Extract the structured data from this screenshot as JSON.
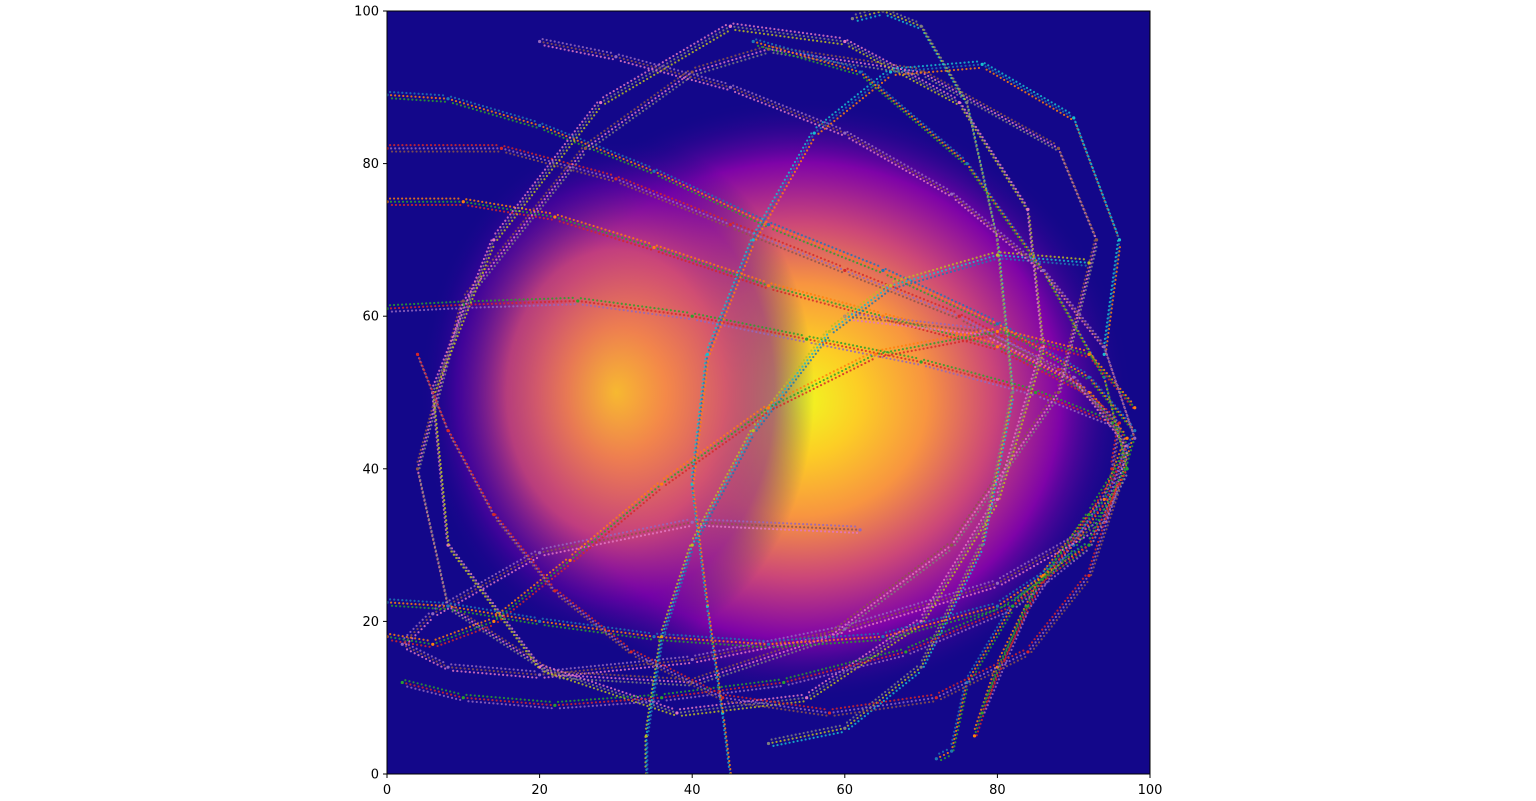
{
  "chart_data": {
    "type": "scatter",
    "title": "",
    "xlabel": "",
    "ylabel": "",
    "xlim": [
      0,
      100
    ],
    "ylim": [
      0,
      100
    ],
    "grid": false,
    "legend": "none",
    "x_ticks": [
      0,
      20,
      40,
      60,
      80,
      100
    ],
    "y_ticks": [
      0,
      20,
      40,
      60,
      80,
      100
    ],
    "background": {
      "type": "heatmap",
      "colormap": "plasma",
      "peaks": [
        {
          "x": 54,
          "y": 49,
          "level": 1.0
        },
        {
          "x": 30,
          "y": 50,
          "level": 0.85
        }
      ]
    },
    "series_colors": [
      "#1f77b4",
      "#ff7f0e",
      "#2ca02c",
      "#d62728",
      "#9467bd",
      "#8c564b",
      "#e377c2",
      "#7f7f7f",
      "#bcbd22",
      "#17becf"
    ],
    "series": [
      {
        "values": [
          [
            0,
            89
          ],
          [
            8,
            88.5
          ],
          [
            20,
            85
          ],
          [
            35,
            79
          ],
          [
            50,
            72
          ],
          [
            65,
            66
          ],
          [
            80,
            59
          ],
          [
            92,
            52
          ],
          [
            98,
            45
          ],
          [
            96,
            38
          ],
          [
            90,
            30
          ],
          [
            82,
            22
          ],
          [
            76,
            12
          ],
          [
            74,
            3
          ],
          [
            72,
            2
          ]
        ]
      },
      {
        "values": [
          [
            0,
            75
          ],
          [
            10,
            75
          ],
          [
            22,
            73
          ],
          [
            35,
            69
          ],
          [
            50,
            64
          ],
          [
            65,
            60
          ],
          [
            80,
            56
          ],
          [
            92,
            50
          ],
          [
            97,
            44
          ],
          [
            94,
            36
          ],
          [
            86,
            26
          ],
          [
            80,
            14
          ],
          [
            77,
            5
          ]
        ]
      },
      {
        "values": [
          [
            0,
            61
          ],
          [
            10,
            61.5
          ],
          [
            25,
            62
          ],
          [
            40,
            60
          ],
          [
            55,
            57
          ],
          [
            70,
            54
          ],
          [
            85,
            50
          ],
          [
            95,
            46
          ],
          [
            97,
            42
          ],
          [
            92,
            34
          ],
          [
            84,
            22
          ],
          [
            78,
            8
          ]
        ]
      },
      {
        "values": [
          [
            0,
            82
          ],
          [
            15,
            82
          ],
          [
            30,
            78
          ],
          [
            45,
            72
          ],
          [
            60,
            66
          ],
          [
            75,
            60
          ],
          [
            88,
            53
          ],
          [
            96,
            46
          ],
          [
            95,
            40
          ]
        ]
      },
      {
        "values": [
          [
            62,
            32
          ],
          [
            40,
            33
          ],
          [
            20,
            29
          ],
          [
            6,
            21
          ],
          [
            2,
            17
          ],
          [
            8,
            14
          ],
          [
            20,
            13
          ],
          [
            40,
            15
          ],
          [
            60,
            19
          ],
          [
            80,
            25
          ],
          [
            94,
            33
          ],
          [
            97,
            43
          ],
          [
            90,
            52
          ],
          [
            78,
            58
          ],
          [
            60,
            60
          ]
        ]
      },
      {
        "values": [
          [
            50,
            95
          ],
          [
            70,
            92
          ],
          [
            88,
            82
          ],
          [
            93,
            70
          ],
          [
            88,
            50
          ],
          [
            74,
            30
          ],
          [
            58,
            18
          ],
          [
            40,
            12
          ],
          [
            22,
            13
          ],
          [
            8,
            22
          ],
          [
            4,
            40
          ],
          [
            10,
            62
          ],
          [
            26,
            82
          ],
          [
            40,
            92
          ],
          [
            50,
            95
          ]
        ]
      },
      {
        "values": [
          [
            45,
            98
          ],
          [
            60,
            96
          ],
          [
            75,
            88
          ],
          [
            84,
            74
          ],
          [
            86,
            56
          ],
          [
            80,
            36
          ],
          [
            70,
            20
          ],
          [
            55,
            10
          ],
          [
            38,
            8
          ],
          [
            20,
            14
          ],
          [
            8,
            30
          ],
          [
            6,
            50
          ],
          [
            14,
            70
          ],
          [
            28,
            88
          ],
          [
            45,
            98
          ]
        ]
      },
      {
        "values": [
          [
            61,
            99
          ],
          [
            65,
            100
          ],
          [
            70,
            98
          ],
          [
            76,
            88
          ],
          [
            80,
            70
          ],
          [
            82,
            50
          ],
          [
            78,
            30
          ],
          [
            70,
            14
          ],
          [
            60,
            6
          ],
          [
            50,
            4
          ]
        ]
      },
      {
        "values": [
          [
            34,
            0
          ],
          [
            34,
            5
          ],
          [
            36,
            18
          ],
          [
            40,
            30
          ],
          [
            48,
            45
          ],
          [
            58,
            58
          ],
          [
            66,
            64
          ],
          [
            80,
            68
          ],
          [
            92,
            67
          ]
        ]
      },
      {
        "values": [
          [
            45,
            0
          ],
          [
            44,
            8
          ],
          [
            42,
            22
          ],
          [
            40,
            38
          ],
          [
            42,
            55
          ],
          [
            48,
            70
          ],
          [
            56,
            84
          ],
          [
            66,
            92
          ],
          [
            78,
            93
          ],
          [
            90,
            86
          ],
          [
            96,
            70
          ],
          [
            94,
            55
          ]
        ]
      },
      {
        "values": [
          [
            0,
            22.5
          ],
          [
            8,
            22
          ],
          [
            20,
            20
          ],
          [
            35,
            18
          ],
          [
            50,
            17
          ],
          [
            65,
            18
          ],
          [
            80,
            22
          ],
          [
            92,
            30
          ],
          [
            97,
            40
          ],
          [
            94,
            52
          ],
          [
            86,
            66
          ],
          [
            76,
            80
          ],
          [
            62,
            92
          ],
          [
            48,
            96
          ]
        ]
      },
      {
        "values": [
          [
            0,
            18
          ],
          [
            6,
            17
          ],
          [
            14,
            20
          ],
          [
            24,
            28
          ],
          [
            36,
            38
          ],
          [
            50,
            48
          ],
          [
            64,
            55
          ],
          [
            80,
            58
          ],
          [
            92,
            55
          ],
          [
            98,
            48
          ]
        ]
      },
      {
        "values": [
          [
            2,
            12
          ],
          [
            10,
            10
          ],
          [
            22,
            9
          ],
          [
            36,
            10
          ],
          [
            52,
            12
          ],
          [
            68,
            16
          ],
          [
            82,
            22
          ],
          [
            92,
            30
          ],
          [
            97,
            40
          ]
        ]
      },
      {
        "values": [
          [
            4,
            55
          ],
          [
            8,
            45
          ],
          [
            14,
            34
          ],
          [
            22,
            24
          ],
          [
            32,
            16
          ],
          [
            44,
            10
          ],
          [
            58,
            8
          ],
          [
            72,
            10
          ],
          [
            84,
            16
          ],
          [
            92,
            26
          ],
          [
            96,
            38
          ]
        ]
      },
      {
        "values": [
          [
            20,
            96
          ],
          [
            30,
            94
          ],
          [
            45,
            90
          ],
          [
            60,
            84
          ],
          [
            74,
            76
          ],
          [
            86,
            66
          ],
          [
            94,
            56
          ],
          [
            98,
            44
          ]
        ]
      }
    ]
  }
}
